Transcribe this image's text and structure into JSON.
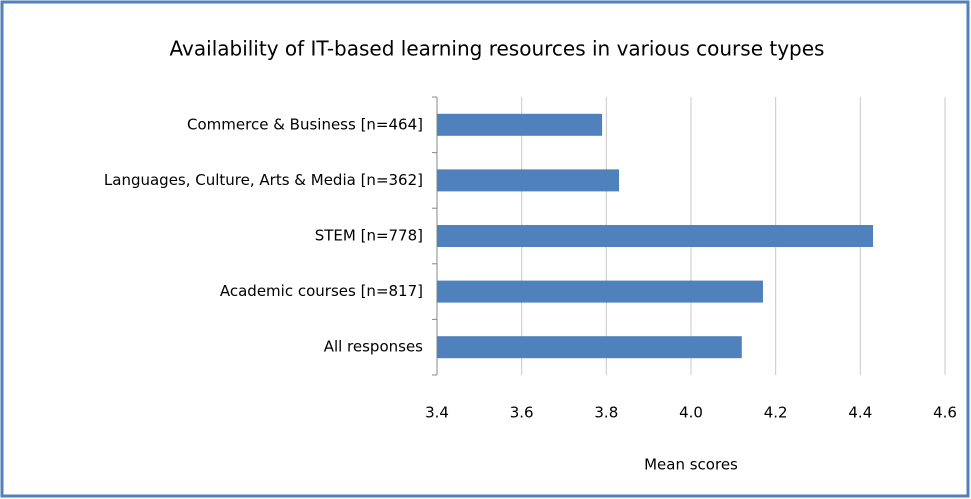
{
  "chart_data": {
    "type": "bar",
    "orientation": "horizontal",
    "title": "Availability of IT-based learning resources in various course types",
    "x_label": "Mean scores",
    "categories": [
      "Commerce & Business [n=464]",
      "Languages, Culture, Arts & Media [n=362]",
      "STEM [n=778]",
      "Academic courses [n=817]",
      "All responses"
    ],
    "values": [
      3.79,
      3.83,
      4.43,
      4.17,
      4.12
    ],
    "color": "#4f81bd",
    "xlim": [
      3.4,
      4.6
    ],
    "xticks": [
      3.4,
      3.6,
      3.8,
      {
        "value": 4,
        "label": "4.0"
      },
      4.2,
      4.4,
      4.6
    ],
    "grid": true
  }
}
